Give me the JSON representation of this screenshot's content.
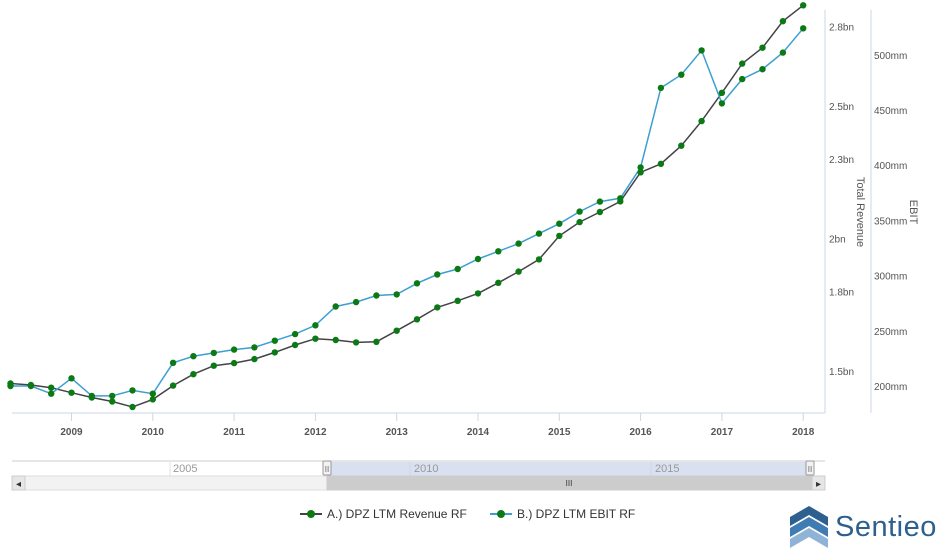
{
  "chart_data": {
    "type": "line",
    "title": "",
    "xlabel": "",
    "x_ticks": [
      "2009",
      "2010",
      "2011",
      "2012",
      "2013",
      "2014",
      "2015",
      "2016",
      "2017",
      "2018"
    ],
    "y_axes": [
      {
        "label": "Total Revenue",
        "ticks": [
          "1.5bn",
          "1.8bn",
          "2bn",
          "2.3bn",
          "2.5bn",
          "2.8bn"
        ]
      },
      {
        "label": "EBIT",
        "ticks": [
          "200mm",
          "250mm",
          "300mm",
          "350mm",
          "400mm",
          "450mm",
          "500mm"
        ]
      }
    ],
    "series": [
      {
        "name": "A.) DPZ LTM Revenue RF",
        "color": "#434348",
        "axis": "Total Revenue",
        "unit": "bn",
        "x": [
          2008.25,
          2008.5,
          2008.75,
          2009.0,
          2009.25,
          2009.5,
          2009.75,
          2010.0,
          2010.25,
          2010.5,
          2010.75,
          2011.0,
          2011.25,
          2011.5,
          2011.75,
          2012.0,
          2012.25,
          2012.5,
          2012.75,
          2013.0,
          2013.25,
          2013.5,
          2013.75,
          2014.0,
          2014.25,
          2014.5,
          2014.75,
          2015.0,
          2015.25,
          2015.5,
          2015.75,
          2016.0,
          2016.25,
          2016.5,
          2016.75,
          2017.0,
          2017.25,
          2017.5,
          2017.75,
          2018.0
        ],
        "values": [
          1.453,
          1.447,
          1.437,
          1.418,
          1.4,
          1.385,
          1.364,
          1.393,
          1.445,
          1.488,
          1.52,
          1.53,
          1.545,
          1.57,
          1.598,
          1.622,
          1.617,
          1.608,
          1.61,
          1.652,
          1.695,
          1.74,
          1.765,
          1.793,
          1.833,
          1.875,
          1.921,
          2.01,
          2.062,
          2.1,
          2.14,
          2.25,
          2.282,
          2.35,
          2.443,
          2.55,
          2.66,
          2.72,
          2.82,
          2.88
        ]
      },
      {
        "name": "B.) DPZ LTM EBIT RF",
        "color": "#3d9fd1",
        "axis": "EBIT",
        "unit": "mm",
        "x": [
          2008.25,
          2008.5,
          2008.75,
          2009.0,
          2009.25,
          2009.5,
          2009.75,
          2010.0,
          2010.25,
          2010.5,
          2010.75,
          2011.0,
          2011.25,
          2011.5,
          2011.75,
          2012.0,
          2012.25,
          2012.5,
          2012.75,
          2013.0,
          2013.25,
          2013.5,
          2013.75,
          2014.0,
          2014.25,
          2014.5,
          2014.75,
          2015.0,
          2015.25,
          2015.5,
          2015.75,
          2016.0,
          2016.25,
          2016.5,
          2016.75,
          2017.0,
          2017.25,
          2017.5,
          2017.75,
          2018.0
        ],
        "values": [
          200,
          200,
          193,
          207,
          191,
          191,
          196,
          193,
          221,
          227,
          230,
          233,
          235,
          241,
          247,
          255,
          272,
          276,
          282,
          283,
          293,
          301,
          306,
          315,
          322,
          329,
          338,
          347,
          358,
          367,
          370,
          398,
          470,
          482,
          504,
          456,
          478,
          487,
          502,
          524
        ]
      }
    ],
    "legend": "bottom-center",
    "grid": false
  },
  "navigator": {
    "labels": [
      "2005",
      "2010",
      "2015"
    ],
    "left_arrow": "◂",
    "right_arrow": "▸",
    "handle_grip": "II",
    "scroll_grip": "III"
  },
  "legend": {
    "items": [
      {
        "label": "A.) DPZ LTM Revenue RF",
        "color": "#434348"
      },
      {
        "label": "B.) DPZ LTM EBIT RF",
        "color": "#3d9fd1"
      }
    ]
  },
  "brand": {
    "name": "Sentieo",
    "color": "#2d5f8f"
  }
}
